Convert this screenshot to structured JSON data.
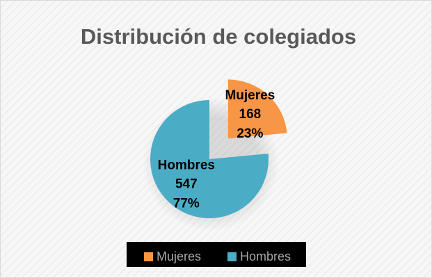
{
  "chart_data": {
    "type": "pie",
    "title": "Distribución de colegiados",
    "categories": [
      "Mujeres",
      "Hombres"
    ],
    "values": [
      168,
      547
    ],
    "percent_labels": [
      "23%",
      "77%"
    ],
    "colors": [
      "#f79646",
      "#4bacc6"
    ],
    "exploded": [
      true,
      false
    ],
    "legend": "bottom"
  }
}
